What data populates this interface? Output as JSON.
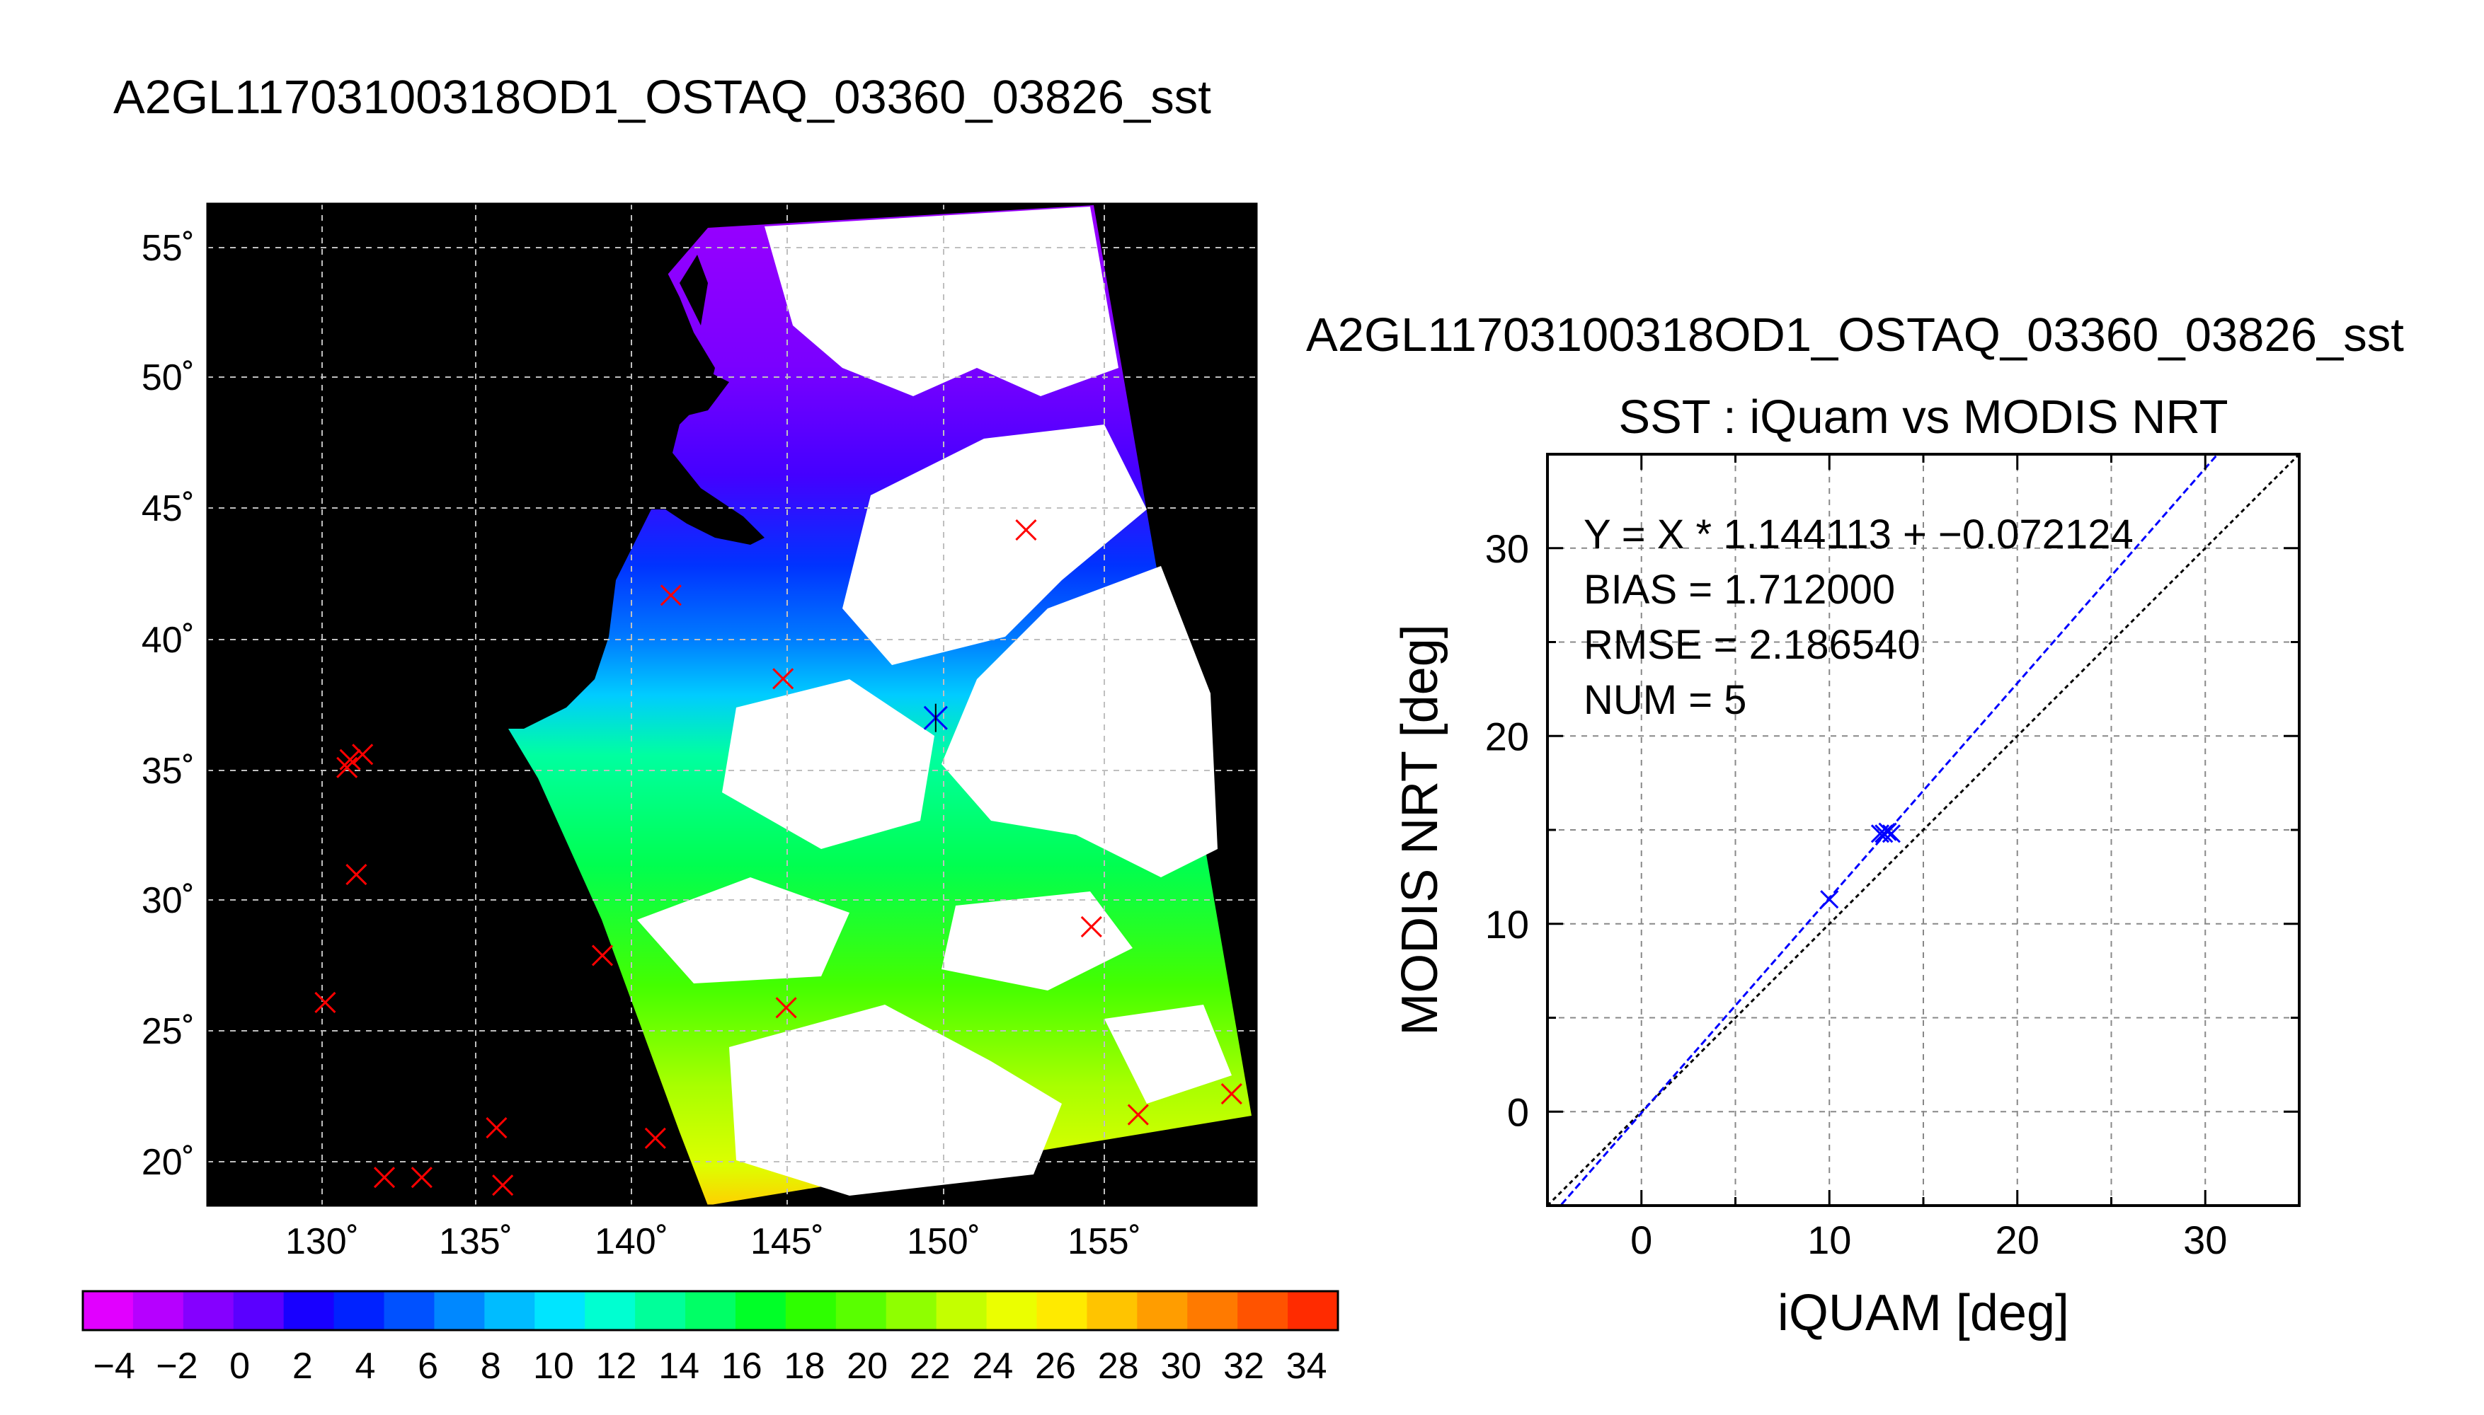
{
  "left_title": "A2GL11703100318OD1_OSTAQ_03360_03826_sst",
  "map": {
    "lat_labels": [
      "55˚",
      "50˚",
      "45˚",
      "40˚",
      "35˚",
      "30˚",
      "25˚",
      "20˚"
    ],
    "lon_labels": [
      "130˚",
      "135˚",
      "140˚",
      "145˚",
      "150˚",
      "155˚"
    ],
    "matchups_red": [
      [
        130.8,
        35.1
      ],
      [
        130.9,
        35.4
      ],
      [
        131.3,
        35.6
      ],
      [
        131.1,
        31.0
      ],
      [
        130.1,
        26.1
      ],
      [
        132.0,
        19.4
      ],
      [
        133.2,
        19.4
      ],
      [
        135.6,
        21.3
      ],
      [
        135.8,
        19.1
      ],
      [
        139.0,
        27.9
      ],
      [
        140.7,
        20.9
      ],
      [
        141.2,
        41.7
      ],
      [
        144.8,
        38.5
      ],
      [
        144.9,
        25.9
      ],
      [
        152.6,
        44.2
      ],
      [
        154.7,
        29.0
      ],
      [
        156.2,
        21.8
      ],
      [
        159.2,
        22.6
      ]
    ],
    "matchups_blue": [
      [
        149.7,
        37.0
      ]
    ]
  },
  "colorbar": {
    "tick_labels": [
      "−4",
      "−2",
      "0",
      "2",
      "4",
      "6",
      "8",
      "10",
      "12",
      "14",
      "16",
      "18",
      "20",
      "22",
      "24",
      "26",
      "28",
      "30",
      "32",
      "34"
    ],
    "range": [
      -5,
      35
    ],
    "colors": [
      "#e100ff",
      "#b600ff",
      "#8500ff",
      "#5a00ff",
      "#1800ff",
      "#0022ff",
      "#0051ff",
      "#0088ff",
      "#00bcff",
      "#00e5ff",
      "#00ffd1",
      "#00ff9a",
      "#00ff66",
      "#00ff28",
      "#2eff00",
      "#59ff00",
      "#8fff00",
      "#c4ff00",
      "#ebff00",
      "#ffea00",
      "#ffc400",
      "#ff9d00",
      "#ff7a00",
      "#ff5300",
      "#ff2b00"
    ]
  },
  "right_title": "A2GL11703100318OD1_OSTAQ_03360_03826_sst",
  "chart_data": {
    "type": "scatter",
    "title": "SST : iQuam vs MODIS NRT",
    "xlabel": "iQUAM [deg]",
    "ylabel": "MODIS NRT [deg]",
    "xlim": [
      -5,
      35
    ],
    "ylim": [
      -5,
      35
    ],
    "xticks": [
      "0",
      "10",
      "20",
      "30"
    ],
    "yticks": [
      "0",
      "10",
      "20",
      "30"
    ],
    "grid": true,
    "annotations": [
      "Y = X * 1.144113 + −0.072124",
      "BIAS = 1.712000",
      "RMSE = 2.186540",
      "NUM = 5"
    ],
    "fit": {
      "slope": 1.144113,
      "intercept": -0.072124,
      "color": "#0000ff"
    },
    "one_to_one": {
      "color": "#000000"
    },
    "points": [
      {
        "x": 10.0,
        "y": 11.3
      },
      {
        "x": 12.7,
        "y": 14.8
      },
      {
        "x": 12.9,
        "y": 14.8
      },
      {
        "x": 13.1,
        "y": 14.9
      },
      {
        "x": 13.3,
        "y": 14.8
      }
    ],
    "point_color": "#0000ff"
  }
}
